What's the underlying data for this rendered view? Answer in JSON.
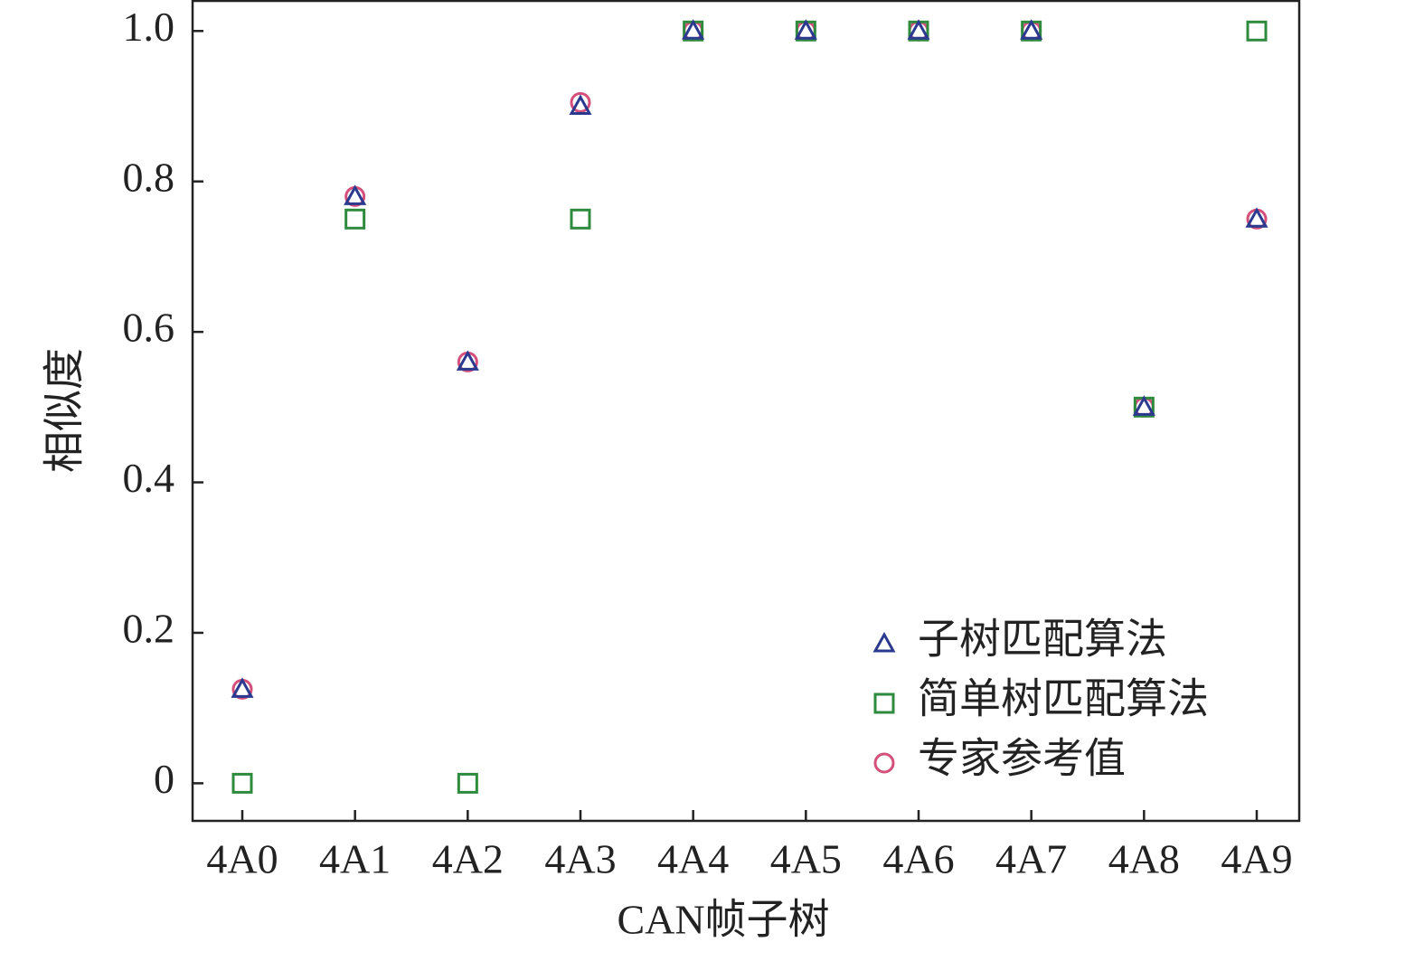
{
  "chart_data": {
    "type": "scatter",
    "x_label": "CAN帧子树",
    "y_label": "相似度",
    "categories": [
      "4A0",
      "4A1",
      "4A2",
      "4A3",
      "4A4",
      "4A5",
      "4A6",
      "4A7",
      "4A8",
      "4A9"
    ],
    "series": [
      {
        "name": "子树匹配算法",
        "color": "#2b3a8f",
        "marker": "triangle",
        "values": [
          0.125,
          0.78,
          0.56,
          0.9,
          1,
          1,
          1,
          1,
          0.5,
          0.75
        ]
      },
      {
        "name": "简单树匹配算法",
        "color": "#2e8b3e",
        "marker": "square",
        "values": [
          0,
          0.75,
          0,
          0.75,
          1,
          1,
          1,
          1,
          0.5,
          1
        ]
      },
      {
        "name": "专家参考值",
        "color": "#d4507a",
        "marker": "circle",
        "values": [
          0.125,
          0.78,
          0.56,
          0.905,
          1,
          1,
          1,
          1,
          0.5,
          0.75
        ]
      }
    ],
    "ylim": [
      -0.05,
      1.04
    ],
    "yticks": [
      0,
      0.2,
      0.4,
      0.6,
      0.8,
      {
        "value": 1,
        "label": "1.0"
      }
    ],
    "grid": false,
    "legend": "lower right"
  }
}
